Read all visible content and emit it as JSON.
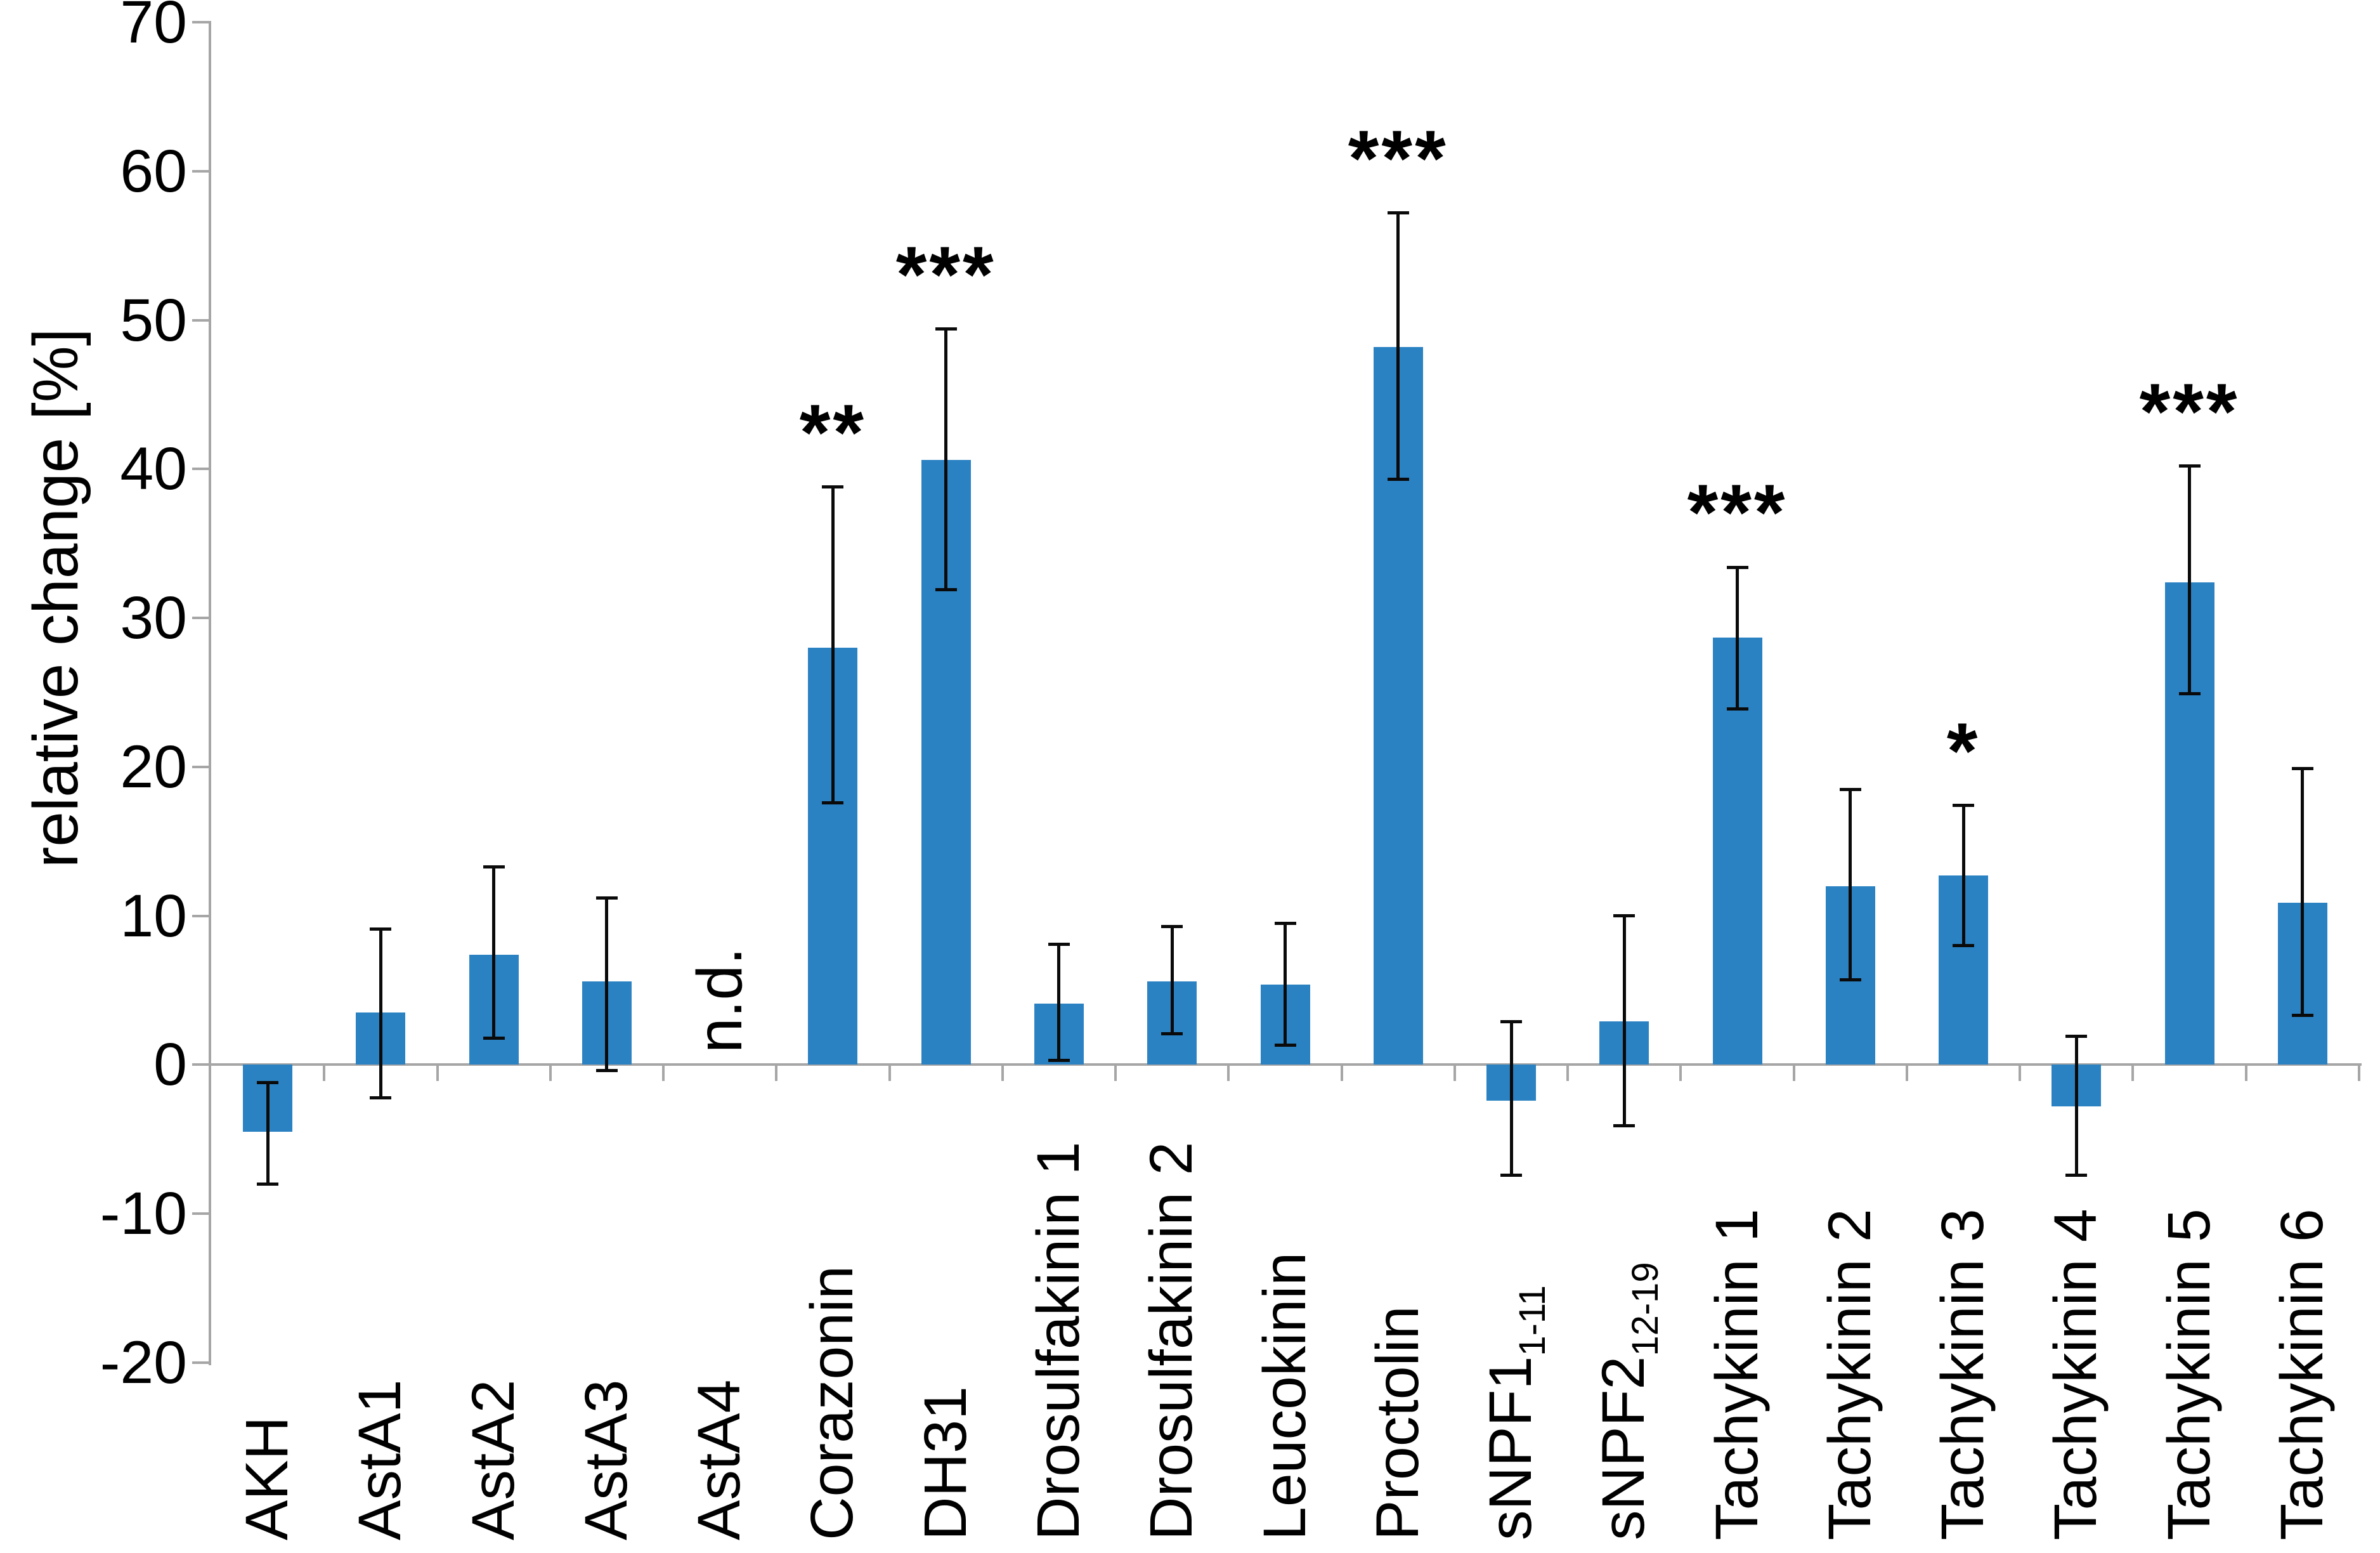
{
  "chart_data": {
    "type": "bar",
    "title": "",
    "xlabel": "",
    "ylabel": "relative change [%]",
    "ylim": [
      -20,
      70
    ],
    "yticks": [
      70,
      60,
      50,
      40,
      30,
      20,
      10,
      0,
      -10,
      -20
    ],
    "grid": false,
    "legend": false,
    "bar_color": "#2b82c2",
    "axis_color": "#a6a6a6",
    "error_bar_color": "#0a0a0a",
    "not_determined_label": "n.d.",
    "categories": [
      "AKH",
      "AstA1",
      "AstA2",
      "AstA3",
      "AstA4",
      "Corazonin",
      "DH31",
      "Drosulfakinin 1",
      "Drosulfakinin 2",
      "Leucokinin",
      "Proctolin",
      "sNPF1",
      "sNPF2",
      "Tachykinin 1",
      "Tachykinin 2",
      "Tachykinin 3",
      "Tachykinin 4",
      "Tachykinin 5",
      "Tachykinin 6"
    ],
    "category_subscripts": [
      "",
      "",
      "",
      "",
      "",
      "",
      "",
      "",
      "",
      "",
      "",
      "1-11",
      "12-19",
      "",
      "",
      "",
      "",
      "",
      ""
    ],
    "series": [
      {
        "name": "relative change [%]",
        "values": [
          -4.5,
          3.5,
          7.4,
          5.6,
          null,
          28.0,
          40.6,
          4.1,
          5.6,
          5.4,
          48.2,
          -2.4,
          2.9,
          28.7,
          12.0,
          12.7,
          -2.8,
          32.4,
          10.9
        ],
        "error_low": [
          -8.0,
          -2.2,
          1.8,
          -0.4,
          null,
          17.6,
          31.9,
          0.3,
          2.1,
          1.3,
          39.3,
          -7.4,
          -4.1,
          23.9,
          5.7,
          8.0,
          -7.4,
          24.9,
          3.3
        ],
        "error_high": [
          -1.2,
          9.1,
          13.3,
          11.2,
          null,
          38.8,
          49.4,
          8.1,
          9.3,
          9.5,
          57.2,
          2.9,
          10.0,
          33.4,
          18.5,
          17.4,
          1.9,
          40.2,
          19.9
        ]
      }
    ],
    "significance": [
      "",
      "",
      "",
      "",
      "",
      "**",
      "***",
      "",
      "",
      "",
      "***",
      "",
      "",
      "***",
      "",
      "*",
      "",
      "***",
      ""
    ],
    "annotations": [
      {
        "category": "AstA4",
        "text": "n.d."
      }
    ]
  }
}
